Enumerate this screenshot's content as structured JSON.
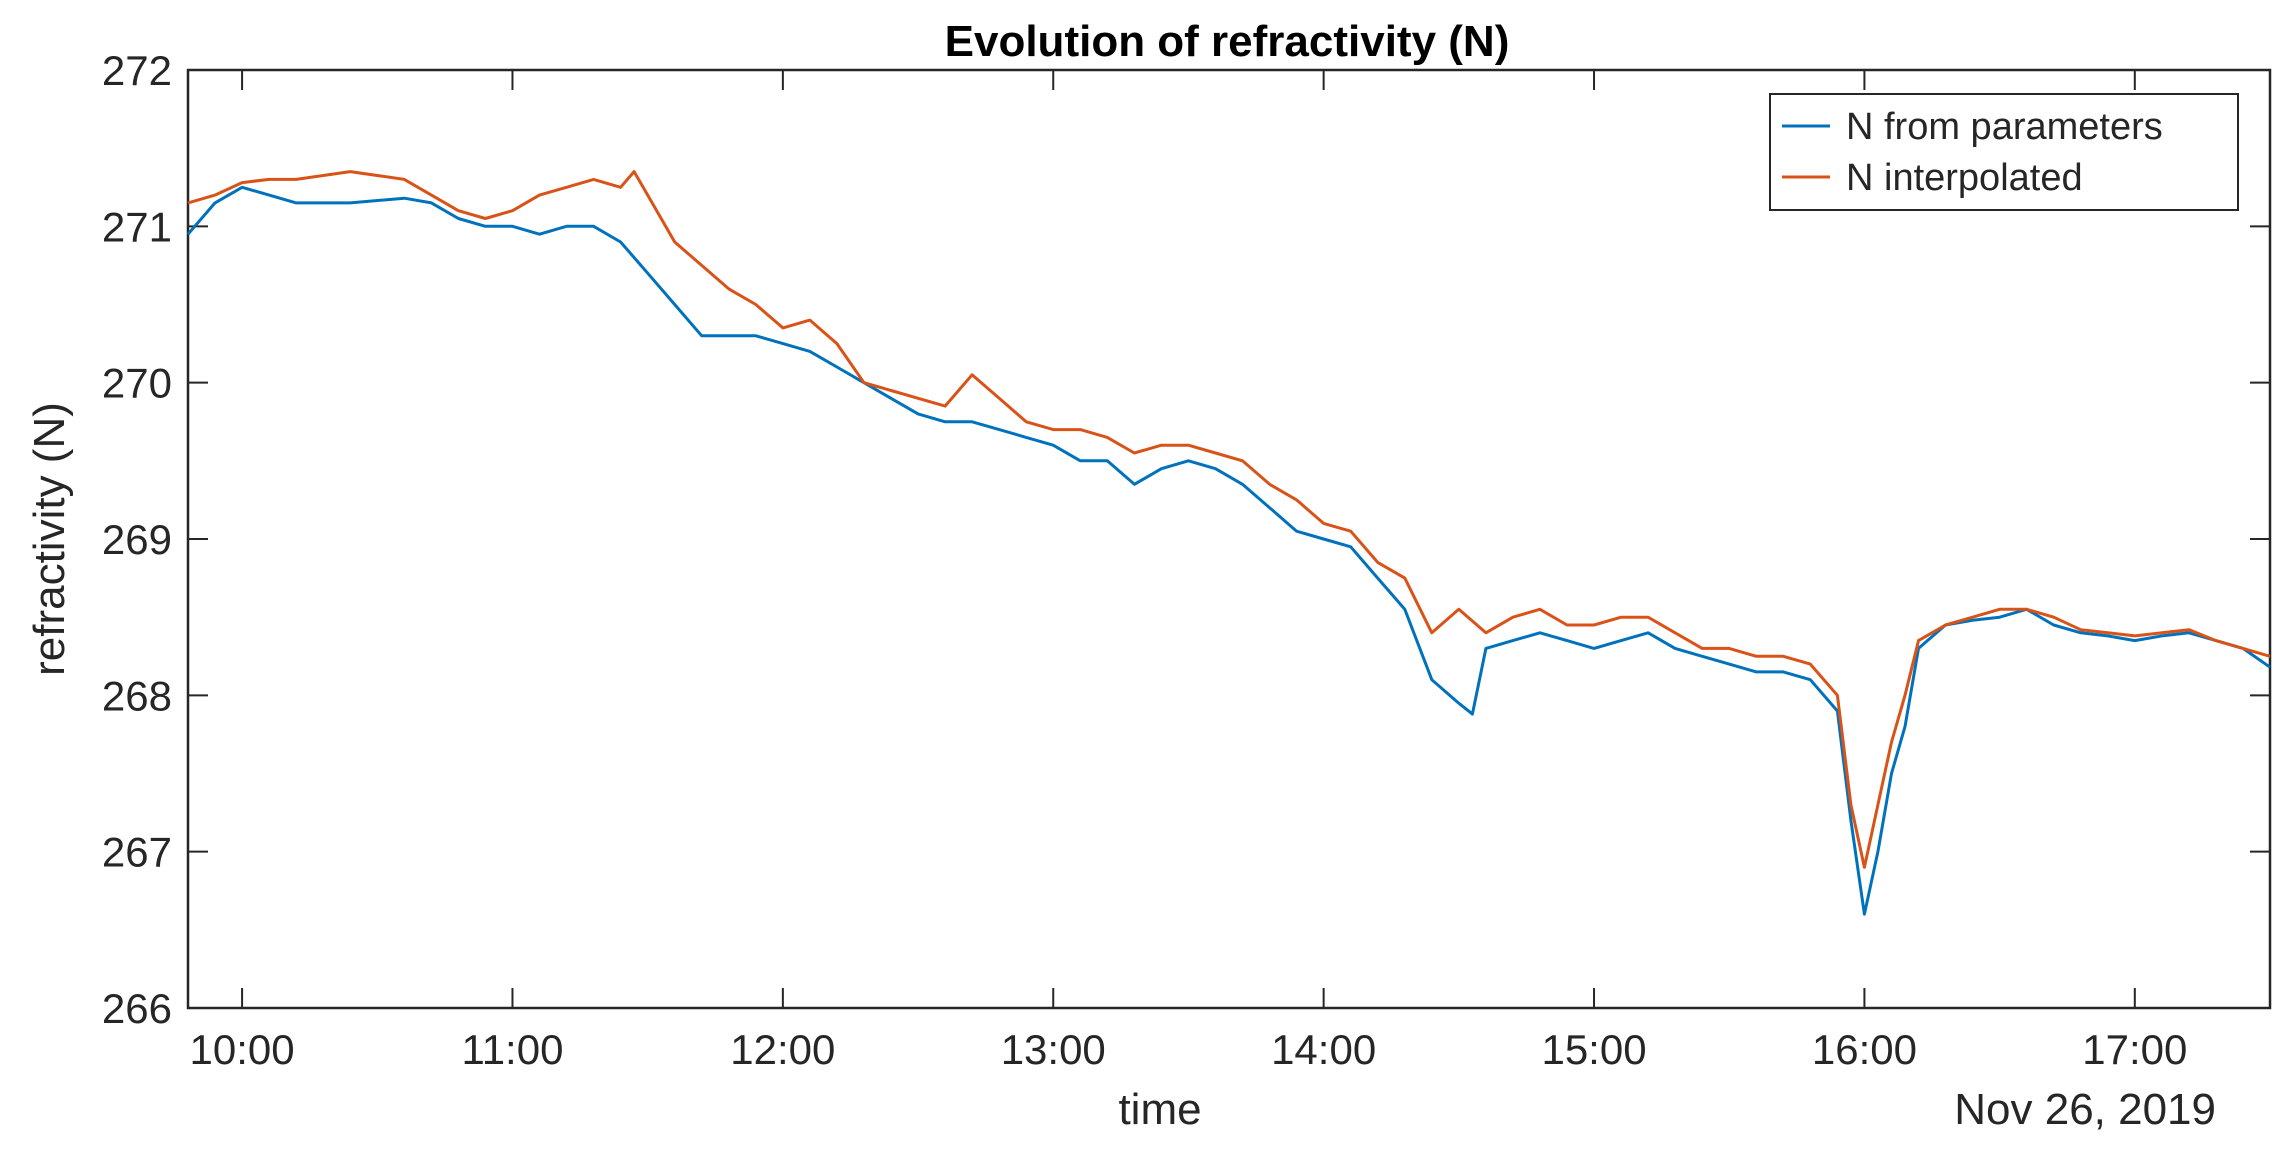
{
  "chart_data": {
    "type": "line",
    "title": "Evolution of refractivity (N)",
    "xlabel": "time",
    "ylabel": "refractivity (N)",
    "date_label": "Nov 26, 2019",
    "xlim": [
      9.8,
      17.5
    ],
    "ylim": [
      266,
      272
    ],
    "x_ticks": [
      10,
      11,
      12,
      13,
      14,
      15,
      16,
      17
    ],
    "x_tick_labels": [
      "10:00",
      "11:00",
      "12:00",
      "13:00",
      "14:00",
      "15:00",
      "16:00",
      "17:00"
    ],
    "y_ticks": [
      266,
      267,
      268,
      269,
      270,
      271,
      272
    ],
    "y_tick_labels": [
      "266",
      "267",
      "268",
      "269",
      "270",
      "271",
      "272"
    ],
    "grid": false,
    "legend_position": "top-right",
    "series": [
      {
        "name": "N from parameters",
        "color": "#0072BD",
        "x": [
          9.8,
          9.9,
          10.0,
          10.1,
          10.2,
          10.4,
          10.6,
          10.7,
          10.8,
          10.9,
          11.0,
          11.1,
          11.2,
          11.3,
          11.4,
          11.5,
          11.6,
          11.7,
          11.8,
          11.9,
          12.0,
          12.1,
          12.2,
          12.3,
          12.4,
          12.5,
          12.6,
          12.7,
          12.8,
          12.9,
          13.0,
          13.1,
          13.2,
          13.3,
          13.4,
          13.5,
          13.6,
          13.7,
          13.8,
          13.9,
          14.0,
          14.1,
          14.2,
          14.3,
          14.4,
          14.5,
          14.55,
          14.6,
          14.7,
          14.8,
          14.9,
          15.0,
          15.1,
          15.2,
          15.3,
          15.4,
          15.5,
          15.6,
          15.7,
          15.8,
          15.9,
          15.95,
          16.0,
          16.05,
          16.1,
          16.15,
          16.2,
          16.3,
          16.4,
          16.5,
          16.6,
          16.7,
          16.8,
          16.9,
          17.0,
          17.1,
          17.2,
          17.3,
          17.4,
          17.5
        ],
        "values": [
          270.95,
          271.15,
          271.25,
          271.2,
          271.15,
          271.15,
          271.18,
          271.15,
          271.05,
          271.0,
          271.0,
          270.95,
          271.0,
          271.0,
          270.9,
          270.7,
          270.5,
          270.3,
          270.3,
          270.3,
          270.25,
          270.2,
          270.1,
          270.0,
          269.9,
          269.8,
          269.75,
          269.75,
          269.7,
          269.65,
          269.6,
          269.5,
          269.5,
          269.35,
          269.45,
          269.5,
          269.45,
          269.35,
          269.2,
          269.05,
          269.0,
          268.95,
          268.75,
          268.55,
          268.1,
          267.95,
          267.88,
          268.3,
          268.35,
          268.4,
          268.35,
          268.3,
          268.35,
          268.4,
          268.3,
          268.25,
          268.2,
          268.15,
          268.15,
          268.1,
          267.9,
          267.2,
          266.6,
          267.0,
          267.5,
          267.8,
          268.3,
          268.45,
          268.48,
          268.5,
          268.55,
          268.45,
          268.4,
          268.38,
          268.35,
          268.38,
          268.4,
          268.35,
          268.3,
          268.18
        ]
      },
      {
        "name": "N interpolated",
        "color": "#D95319",
        "x": [
          9.8,
          9.9,
          10.0,
          10.1,
          10.2,
          10.4,
          10.6,
          10.7,
          10.8,
          10.9,
          11.0,
          11.1,
          11.2,
          11.3,
          11.4,
          11.45,
          11.5,
          11.6,
          11.7,
          11.8,
          11.9,
          12.0,
          12.1,
          12.2,
          12.3,
          12.4,
          12.5,
          12.6,
          12.7,
          12.8,
          12.9,
          13.0,
          13.1,
          13.2,
          13.3,
          13.4,
          13.5,
          13.6,
          13.7,
          13.8,
          13.9,
          14.0,
          14.1,
          14.2,
          14.3,
          14.4,
          14.5,
          14.6,
          14.7,
          14.8,
          14.9,
          15.0,
          15.1,
          15.2,
          15.3,
          15.4,
          15.5,
          15.6,
          15.7,
          15.8,
          15.9,
          15.95,
          16.0,
          16.05,
          16.1,
          16.15,
          16.2,
          16.3,
          16.4,
          16.5,
          16.6,
          16.7,
          16.8,
          16.9,
          17.0,
          17.1,
          17.2,
          17.3,
          17.4,
          17.5
        ],
        "values": [
          271.15,
          271.2,
          271.28,
          271.3,
          271.3,
          271.35,
          271.3,
          271.2,
          271.1,
          271.05,
          271.1,
          271.2,
          271.25,
          271.3,
          271.25,
          271.35,
          271.2,
          270.9,
          270.75,
          270.6,
          270.5,
          270.35,
          270.4,
          270.25,
          270.0,
          269.95,
          269.9,
          269.85,
          270.05,
          269.9,
          269.75,
          269.7,
          269.7,
          269.65,
          269.55,
          269.6,
          269.6,
          269.55,
          269.5,
          269.35,
          269.25,
          269.1,
          269.05,
          268.85,
          268.75,
          268.4,
          268.55,
          268.4,
          268.5,
          268.55,
          268.45,
          268.45,
          268.5,
          268.5,
          268.4,
          268.3,
          268.3,
          268.25,
          268.25,
          268.2,
          268.0,
          267.3,
          266.9,
          267.3,
          267.7,
          268.0,
          268.35,
          268.45,
          268.5,
          268.55,
          268.55,
          268.5,
          268.42,
          268.4,
          268.38,
          268.4,
          268.42,
          268.35,
          268.3,
          268.25
        ]
      }
    ]
  }
}
